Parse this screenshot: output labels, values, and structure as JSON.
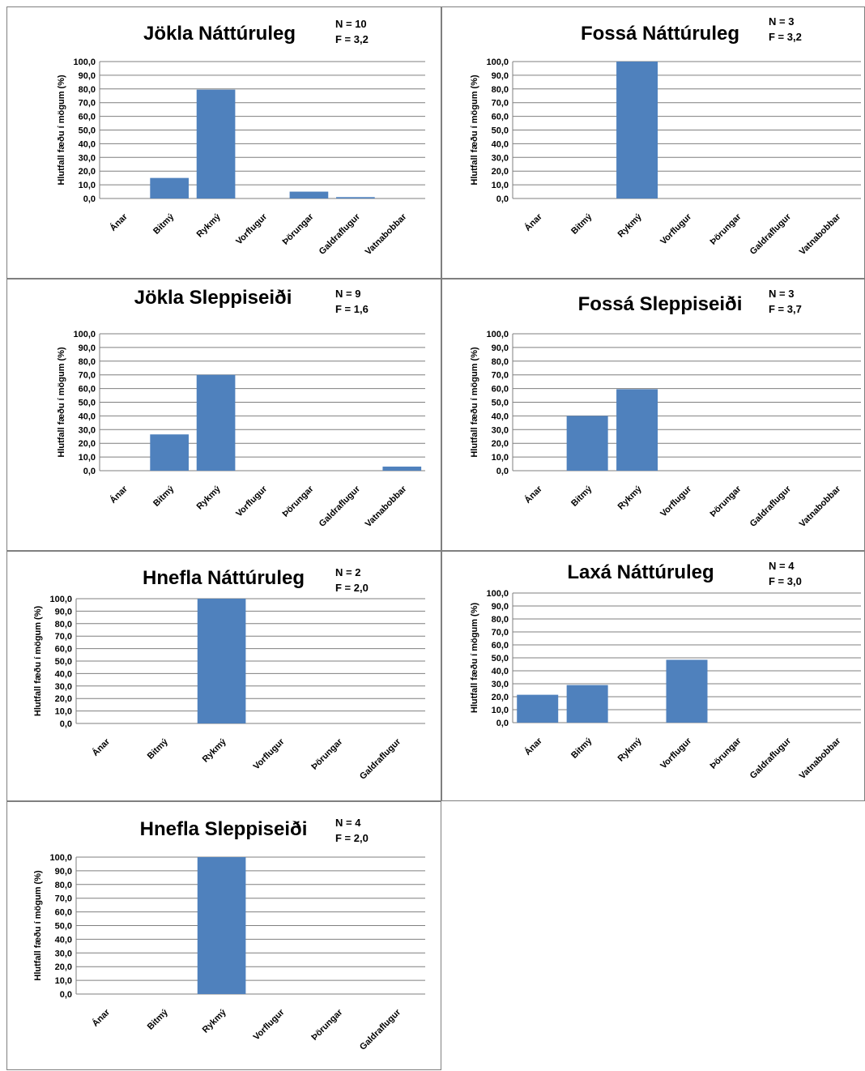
{
  "colors": {
    "bar": "#4F81BD",
    "grid": "#7f7f7f",
    "border": "#7f7f7f"
  },
  "chart_data": [
    {
      "type": "bar",
      "title": "Jökla Náttúruleg",
      "n_label": "N = 10",
      "f_label": "F = 3,2",
      "ylabel": "Hlutfall fæðu í mögum (%)",
      "ylim": [
        0,
        100
      ],
      "ytick_labels": [
        "0,0",
        "10,0",
        "20,0",
        "30,0",
        "40,0",
        "50,0",
        "60,0",
        "70,0",
        "80,0",
        "90,0",
        "100,0"
      ],
      "categories": [
        "Ánar",
        "Bitmý",
        "Rykmý",
        "Vorflugur",
        "Þörungar",
        "Galdraflugur",
        "Vatnabobbar"
      ],
      "values": [
        0,
        15,
        79.5,
        0,
        5,
        1,
        0
      ],
      "grid": true
    },
    {
      "type": "bar",
      "title": "Fossá Náttúruleg",
      "n_label": "N = 3",
      "f_label": "F = 3,2",
      "ylabel": "Hlutfall fæðu í mögum (%)",
      "ylim": [
        0,
        100
      ],
      "ytick_labels": [
        "0,0",
        "10,0",
        "20,0",
        "30,0",
        "40,0",
        "50,0",
        "60,0",
        "70,0",
        "80,0",
        "90,0",
        "100,0"
      ],
      "categories": [
        "Ánar",
        "Bitmý",
        "Rykmý",
        "Vorflugur",
        "Þörungar",
        "Galdraflugur",
        "Vatnabobbar"
      ],
      "values": [
        0,
        0,
        100,
        0,
        0,
        0,
        0
      ],
      "grid": true
    },
    {
      "type": "bar",
      "title": "Jökla Sleppiseiði",
      "n_label": "N = 9",
      "f_label": "F = 1,6",
      "ylabel": "Hlutfall fæðu í mögum (%)",
      "ylim": [
        0,
        100
      ],
      "ytick_labels": [
        "0,0",
        "10,0",
        "20,0",
        "30,0",
        "40,0",
        "50,0",
        "60,0",
        "70,0",
        "80,0",
        "90,0",
        "100,0"
      ],
      "categories": [
        "Ánar",
        "Bitmý",
        "Rykmý",
        "Vorflugur",
        "Þörungar",
        "Galdraflugur",
        "Vatnabobbar"
      ],
      "values": [
        0,
        26.5,
        70,
        0,
        0,
        0,
        3
      ],
      "grid": true
    },
    {
      "type": "bar",
      "title": "Fossá Sleppiseiði",
      "n_label": "N = 3",
      "f_label": "F = 3,7",
      "ylabel": "Hlutfall fæðu í mögum (%)",
      "ylim": [
        0,
        100
      ],
      "ytick_labels": [
        "0,0",
        "10,0",
        "20,0",
        "30,0",
        "40,0",
        "50,0",
        "60,0",
        "70,0",
        "80,0",
        "90,0",
        "100,0"
      ],
      "categories": [
        "Ánar",
        "Bitmý",
        "Rykmý",
        "Vorflugur",
        "Þörungar",
        "Galdraflugur",
        "Vatnabobbar"
      ],
      "values": [
        0,
        40,
        59.5,
        0,
        0,
        0,
        0
      ],
      "grid": true
    },
    {
      "type": "bar",
      "title": "Hnefla Náttúruleg",
      "n_label": "N = 2",
      "f_label": "F = 2,0",
      "ylabel": "Hlutfall fæðu í mögum (%)",
      "ylim": [
        0,
        100
      ],
      "ytick_labels": [
        "0,0",
        "10,0",
        "20,0",
        "30,0",
        "40,0",
        "50,0",
        "60,0",
        "70,0",
        "80,0",
        "90,0",
        "100,0"
      ],
      "categories": [
        "Ánar",
        "Bitmý",
        "Rykmý",
        "Vorflugur",
        "Þörungar",
        "Galdraflugur"
      ],
      "values": [
        0,
        0,
        100,
        0,
        0,
        0
      ],
      "grid": true
    },
    {
      "type": "bar",
      "title": "Laxá Náttúruleg",
      "n_label": "N = 4",
      "f_label": "F = 3,0",
      "ylabel": "Hlutfall fæðu í mögum (%)",
      "ylim": [
        0,
        100
      ],
      "ytick_labels": [
        "0,0",
        "10,0",
        "20,0",
        "30,0",
        "40,0",
        "50,0",
        "60,0",
        "70,0",
        "80,0",
        "90,0",
        "100,0"
      ],
      "categories": [
        "Ánar",
        "Bitmý",
        "Rykmý",
        "Vorflugur",
        "Þörungar",
        "Galdraflugur",
        "Vatnabobbar"
      ],
      "values": [
        21.5,
        29,
        0,
        48.5,
        0,
        0,
        0
      ],
      "grid": true
    },
    {
      "type": "bar",
      "title": "Hnefla Sleppiseiði",
      "n_label": "N = 4",
      "f_label": "F = 2,0",
      "ylabel": "Hlutfall fæðu í mögum (%)",
      "ylim": [
        0,
        100
      ],
      "ytick_labels": [
        "0,0",
        "10,0",
        "20,0",
        "30,0",
        "40,0",
        "50,0",
        "60,0",
        "70,0",
        "80,0",
        "90,0",
        "100,0"
      ],
      "categories": [
        "Ánar",
        "Bitmý",
        "Rykmý",
        "Vorflugur",
        "Þörungar",
        "Galdraflugur"
      ],
      "values": [
        0,
        0,
        100,
        0,
        0,
        0
      ],
      "grid": true
    }
  ]
}
